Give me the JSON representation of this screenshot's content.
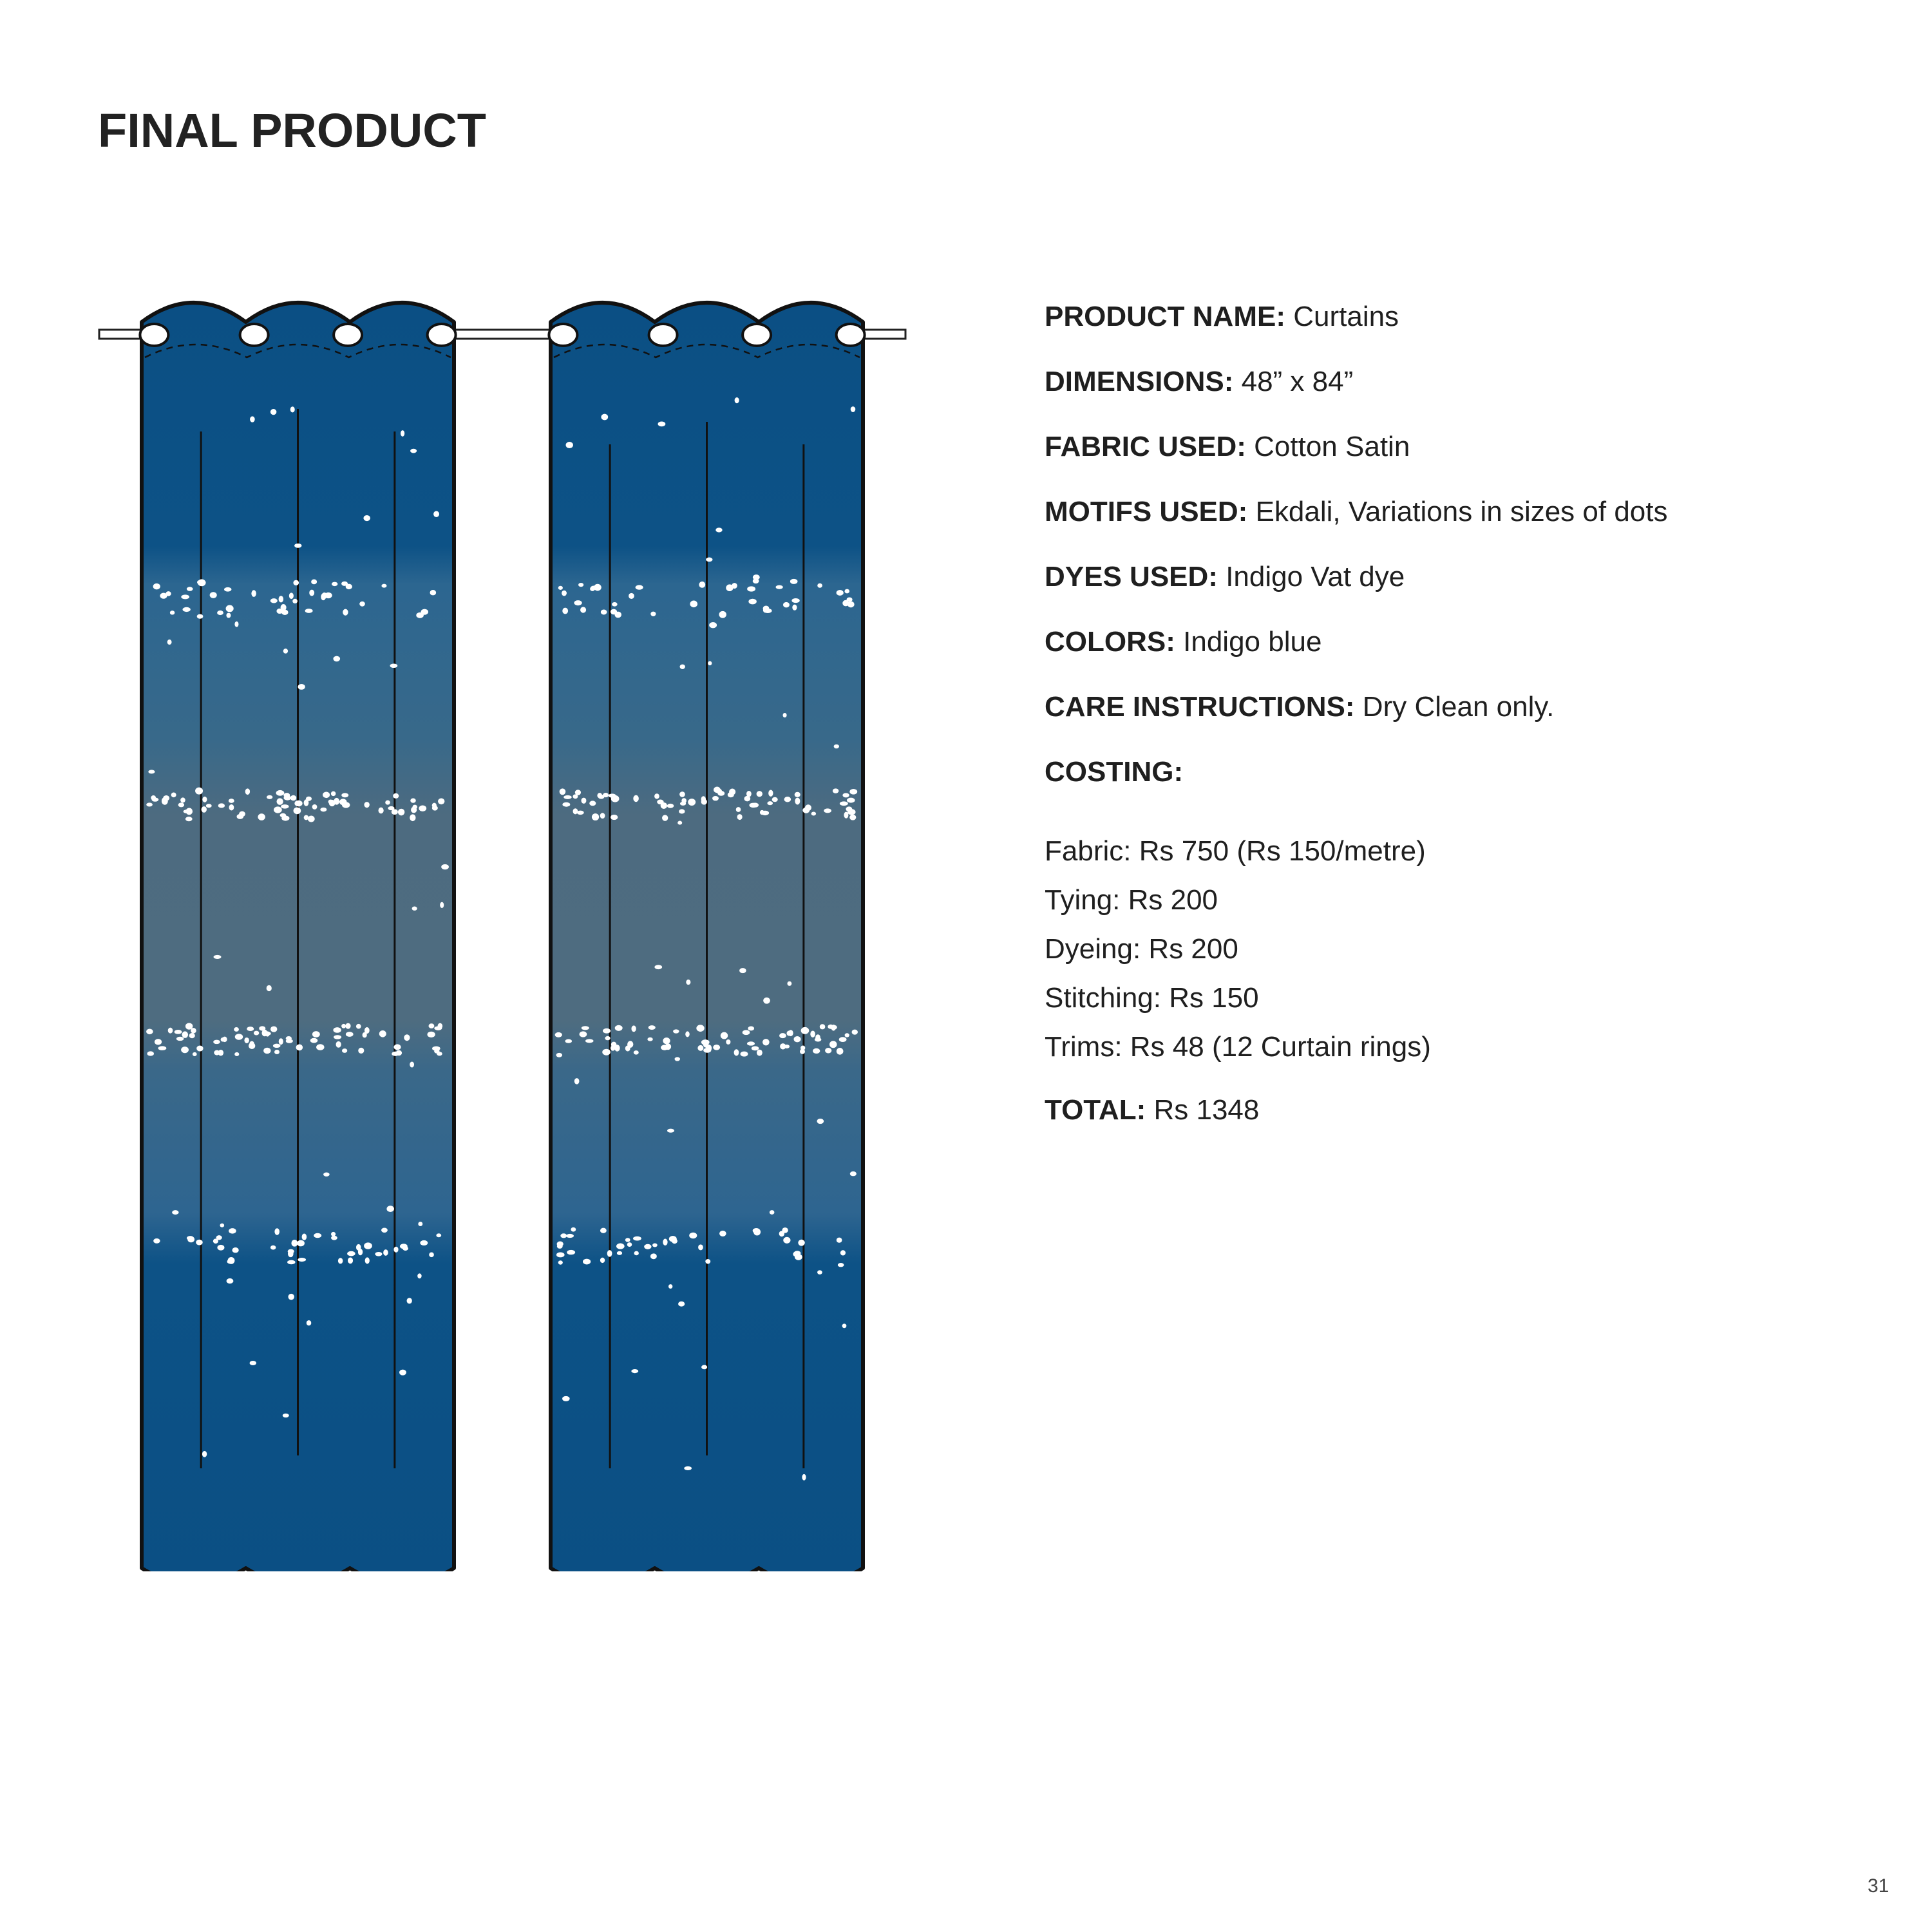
{
  "heading": "FINAL PRODUCT",
  "specs": [
    {
      "label": "PRODUCT NAME:",
      "value": " Curtains"
    },
    {
      "label": "DIMENSIONS:",
      "value": "48” x 84”"
    },
    {
      "label": "FABRIC USED:",
      "value": "Cotton Satin"
    },
    {
      "label": "MOTIFS USED:",
      "value": "Ekdali, Variations in sizes of dots"
    },
    {
      "label": "DYES USED:",
      "value": "Indigo Vat dye"
    },
    {
      "label": "COLORS:",
      "value": "Indigo blue"
    },
    {
      "label": "CARE INSTRUCTIONS:",
      "value": "Dry Clean only."
    },
    {
      "label": "COSTING:",
      "value": ""
    }
  ],
  "costing": [
    "Fabric: Rs 750 (Rs 150/metre)",
    "Tying: Rs 200",
    "Dyeing: Rs 200",
    "Stitching: Rs 150",
    "Trims: Rs 48 (12 Curtain rings)"
  ],
  "total": {
    "label": "TOTAL:",
    "value": "Rs 1348"
  },
  "page_number": "31",
  "colors": {
    "indigo_dark": "#0b4f84",
    "indigo_mid": "#2c6690",
    "indigo_light": "#4d6b80",
    "text": "#1f1f1f"
  }
}
